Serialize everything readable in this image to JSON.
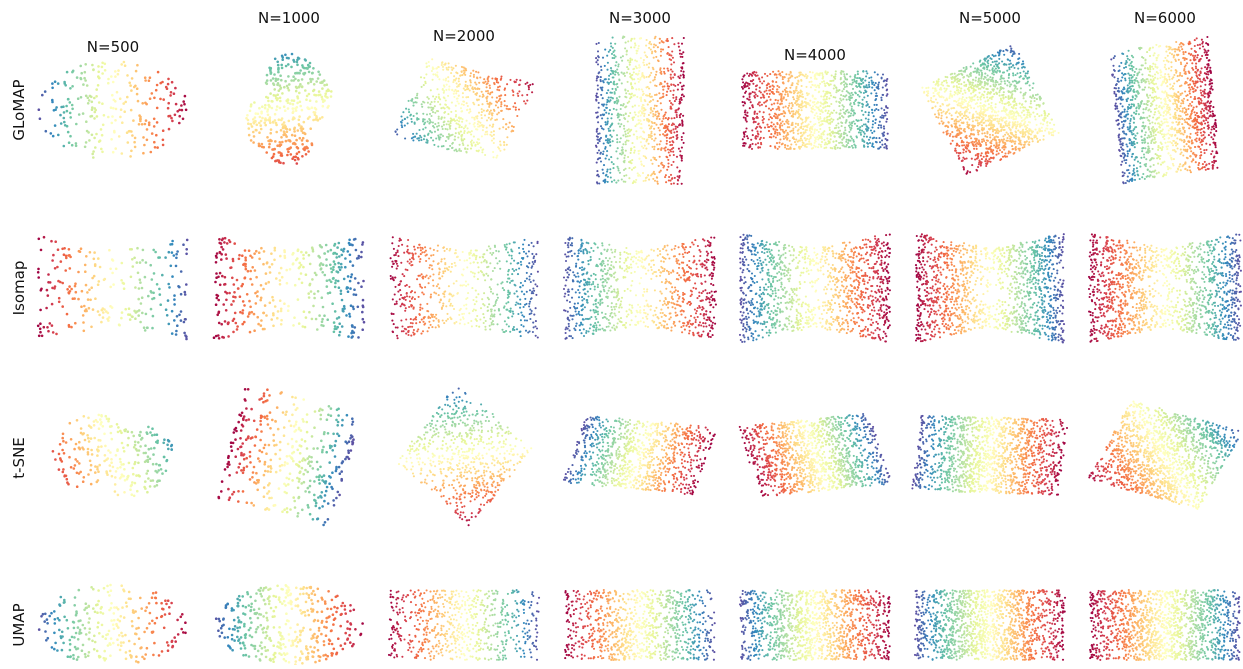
{
  "chart_data": {
    "type": "scatter",
    "title": "",
    "legend": "none",
    "axes": "off",
    "colormap": [
      "#9e0142",
      "#d53e4f",
      "#f46d43",
      "#fdae61",
      "#fee08b",
      "#ffffbf",
      "#e6f598",
      "#abdda4",
      "#66c2a5",
      "#3288bd",
      "#5e4fa2"
    ],
    "column_labels": [
      "N=500",
      "N=1000",
      "N=2000",
      "N=3000",
      "N=4000",
      "N=5000",
      "N=6000"
    ],
    "row_labels": [
      "GLoMAP",
      "Isomap",
      "t-SNE",
      "UMAP"
    ],
    "sample_sizes": [
      500,
      1000,
      2000,
      3000,
      4000,
      5000,
      6000
    ],
    "panels": [
      {
        "method": "GLoMAP",
        "N": 500,
        "shape": "scatter-blob",
        "orientation_deg": 0,
        "color_axis": "horizontal-reversed"
      },
      {
        "method": "GLoMAP",
        "N": 1000,
        "shape": "two-lobes",
        "orientation_deg": 60,
        "color_axis": "diagonal"
      },
      {
        "method": "GLoMAP",
        "N": 2000,
        "shape": "rectangle",
        "orientation_deg": -25,
        "color_axis": "diagonal-reversed"
      },
      {
        "method": "GLoMAP",
        "N": 3000,
        "shape": "rectangle",
        "orientation_deg": 90,
        "color_axis": "vertical"
      },
      {
        "method": "GLoMAP",
        "N": 4000,
        "shape": "rectangle",
        "orientation_deg": 0,
        "color_axis": "horizontal"
      },
      {
        "method": "GLoMAP",
        "N": 5000,
        "shape": "rectangle",
        "orientation_deg": 35,
        "color_axis": "diagonal"
      },
      {
        "method": "GLoMAP",
        "N": 6000,
        "shape": "rectangle",
        "orientation_deg": 95,
        "color_axis": "vertical"
      },
      {
        "method": "Isomap",
        "N": 500,
        "shape": "hourglass",
        "orientation_deg": 0,
        "color_axis": "horizontal"
      },
      {
        "method": "Isomap",
        "N": 1000,
        "shape": "hourglass",
        "orientation_deg": 0,
        "color_axis": "horizontal"
      },
      {
        "method": "Isomap",
        "N": 2000,
        "shape": "hourglass",
        "orientation_deg": 0,
        "color_axis": "horizontal"
      },
      {
        "method": "Isomap",
        "N": 3000,
        "shape": "hourglass",
        "orientation_deg": 0,
        "color_axis": "horizontal-reversed"
      },
      {
        "method": "Isomap",
        "N": 4000,
        "shape": "hourglass",
        "orientation_deg": 0,
        "color_axis": "horizontal-reversed"
      },
      {
        "method": "Isomap",
        "N": 5000,
        "shape": "hourglass",
        "orientation_deg": 0,
        "color_axis": "horizontal"
      },
      {
        "method": "Isomap",
        "N": 6000,
        "shape": "hourglass",
        "orientation_deg": 0,
        "color_axis": "horizontal"
      },
      {
        "method": "t-SNE",
        "N": 500,
        "shape": "two-lobes",
        "orientation_deg": -35,
        "color_axis": "diagonal"
      },
      {
        "method": "t-SNE",
        "N": 1000,
        "shape": "rectangle",
        "orientation_deg": 80,
        "color_axis": "vertical-reversed"
      },
      {
        "method": "t-SNE",
        "N": 2000,
        "shape": "rectangle",
        "orientation_deg": 60,
        "color_axis": "diagonal"
      },
      {
        "method": "t-SNE",
        "N": 3000,
        "shape": "rectangle",
        "orientation_deg": -15,
        "color_axis": "horizontal-reversed"
      },
      {
        "method": "t-SNE",
        "N": 4000,
        "shape": "rectangle",
        "orientation_deg": 15,
        "color_axis": "horizontal"
      },
      {
        "method": "t-SNE",
        "N": 5000,
        "shape": "rectangle",
        "orientation_deg": -5,
        "color_axis": "horizontal-reversed"
      },
      {
        "method": "t-SNE",
        "N": 6000,
        "shape": "rectangle",
        "orientation_deg": -30,
        "color_axis": "diagonal"
      },
      {
        "method": "UMAP",
        "N": 500,
        "shape": "scatter-blob",
        "orientation_deg": 0,
        "color_axis": "horizontal-reversed"
      },
      {
        "method": "UMAP",
        "N": 1000,
        "shape": "scatter-blob",
        "orientation_deg": 0,
        "color_axis": "horizontal-reversed"
      },
      {
        "method": "UMAP",
        "N": 2000,
        "shape": "rectangle",
        "orientation_deg": 0,
        "color_axis": "horizontal"
      },
      {
        "method": "UMAP",
        "N": 3000,
        "shape": "rectangle",
        "orientation_deg": 0,
        "color_axis": "horizontal"
      },
      {
        "method": "UMAP",
        "N": 4000,
        "shape": "rectangle",
        "orientation_deg": 0,
        "color_axis": "horizontal-reversed"
      },
      {
        "method": "UMAP",
        "N": 5000,
        "shape": "rectangle",
        "orientation_deg": 0,
        "color_axis": "horizontal-reversed"
      },
      {
        "method": "UMAP",
        "N": 6000,
        "shape": "rectangle",
        "orientation_deg": 0,
        "color_axis": "horizontal"
      }
    ]
  }
}
